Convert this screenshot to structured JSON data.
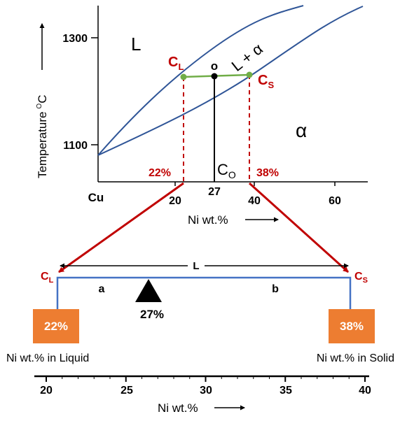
{
  "phase_diagram": {
    "temperature_axis": {
      "label": "Temperature",
      "unit_superscript": "O",
      "unit": "C",
      "ticks": [
        "1300",
        "1100"
      ]
    },
    "composition_axis": {
      "origin_label": "Cu",
      "ticks": [
        "20",
        "27",
        "40",
        "60"
      ],
      "label": "Ni wt.%"
    },
    "regions": {
      "liquid": "L",
      "two_phase": "L + α",
      "solid": "α"
    },
    "tie_line": {
      "cl_main": "C",
      "cl_sub": "L",
      "cs_main": "C",
      "cs_sub": "S",
      "point_label": "o",
      "cl_value": "22%",
      "cs_value": "38%",
      "co_main": "C",
      "co_sub": "O"
    },
    "colors": {
      "curves": "#2f5597",
      "tie_line": "#70ad47",
      "construction": "#c00000",
      "box": "#ed7d31",
      "lever": "#4472c4"
    }
  },
  "lever_rule": {
    "cl_main": "C",
    "cl_sub": "L",
    "cs_main": "C",
    "cs_sub": "S",
    "length_label": "L",
    "segment_a": "a",
    "segment_b": "b",
    "fulcrum_value": "27%",
    "left_box": "22%",
    "right_box": "38%",
    "left_caption": "Ni wt.% in Liquid",
    "right_caption": "Ni wt.% in Solid"
  },
  "scale": {
    "ticks": [
      "20",
      "25",
      "30",
      "35",
      "40"
    ],
    "label": "Ni wt.%"
  }
}
